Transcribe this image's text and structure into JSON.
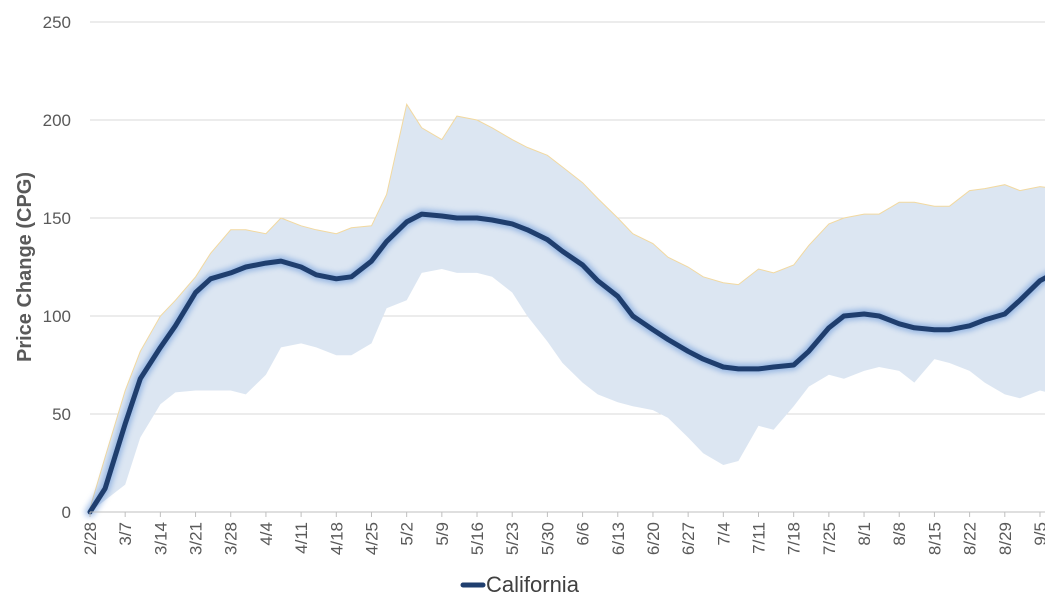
{
  "chart_data": {
    "type": "line",
    "ylabel": "Price Change (CPG)",
    "ylim": [
      0,
      250
    ],
    "yticks": [
      0,
      50,
      100,
      150,
      200,
      250
    ],
    "grid": true,
    "legend_position": "bottom",
    "x_tick_labels": [
      "2/28",
      "3/7",
      "3/14",
      "3/21",
      "3/28",
      "4/4",
      "4/11",
      "4/18",
      "4/25",
      "5/2",
      "5/9",
      "5/16",
      "5/23",
      "5/30",
      "6/6",
      "6/13",
      "6/20",
      "6/27",
      "7/4",
      "7/11",
      "7/18",
      "7/25",
      "8/1",
      "8/8",
      "8/15",
      "8/22",
      "8/29",
      "9/5"
    ],
    "x": [
      "2/28",
      "3/3",
      "3/7",
      "3/10",
      "3/14",
      "3/17",
      "3/21",
      "3/24",
      "3/28",
      "3/31",
      "4/4",
      "4/7",
      "4/11",
      "4/14",
      "4/18",
      "4/21",
      "4/25",
      "4/28",
      "5/2",
      "5/5",
      "5/9",
      "5/12",
      "5/16",
      "5/19",
      "5/23",
      "5/26",
      "5/30",
      "6/2",
      "6/6",
      "6/9",
      "6/13",
      "6/16",
      "6/20",
      "6/23",
      "6/27",
      "6/30",
      "7/4",
      "7/7",
      "7/11",
      "7/14",
      "7/18",
      "7/21",
      "7/25",
      "7/28",
      "8/1",
      "8/4",
      "8/8",
      "8/11",
      "8/15",
      "8/18",
      "8/22",
      "8/25",
      "8/29",
      "9/1",
      "9/5",
      "9/8"
    ],
    "series": [
      {
        "name": "California",
        "color": "#1f3e6e",
        "values": [
          0,
          12,
          45,
          68,
          84,
          95,
          112,
          119,
          122,
          125,
          127,
          128,
          125,
          121,
          119,
          120,
          128,
          138,
          148,
          152,
          151,
          150,
          150,
          149,
          147,
          144,
          139,
          133,
          126,
          118,
          110,
          100,
          93,
          88,
          82,
          78,
          74,
          73,
          73,
          74,
          75,
          82,
          94,
          100,
          101,
          100,
          96,
          94,
          93,
          93,
          95,
          98,
          101,
          108,
          118,
          122
        ]
      }
    ],
    "range_band": {
      "upper": [
        2,
        28,
        62,
        82,
        100,
        108,
        120,
        132,
        144,
        144,
        142,
        150,
        146,
        144,
        142,
        145,
        146,
        162,
        208,
        196,
        190,
        202,
        200,
        196,
        190,
        186,
        182,
        176,
        168,
        160,
        150,
        142,
        137,
        130,
        125,
        120,
        117,
        116,
        124,
        122,
        126,
        136,
        147,
        150,
        152,
        152,
        158,
        158,
        156,
        156,
        164,
        165,
        167,
        164,
        166,
        165
      ],
      "lower": [
        0,
        6,
        14,
        38,
        55,
        61,
        62,
        62,
        62,
        60,
        70,
        84,
        86,
        84,
        80,
        80,
        86,
        104,
        108,
        122,
        124,
        122,
        122,
        120,
        112,
        100,
        87,
        76,
        66,
        60,
        56,
        54,
        52,
        48,
        38,
        30,
        24,
        26,
        44,
        42,
        54,
        64,
        70,
        68,
        72,
        74,
        72,
        66,
        78,
        76,
        72,
        66,
        60,
        58,
        62,
        60
      ],
      "color": "#dce6f2",
      "edge_color": "#f2d9a0"
    }
  }
}
